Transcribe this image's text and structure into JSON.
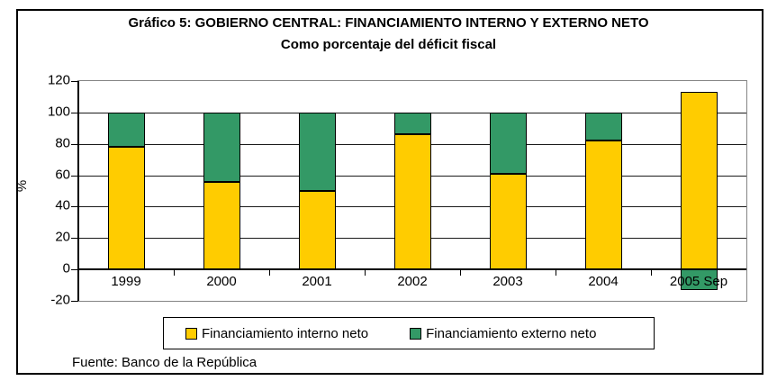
{
  "figure": {
    "title": "Gráfico 5:  GOBIERNO CENTRAL: FINANCIAMIENTO INTERNO Y EXTERNO NETO",
    "subtitle": "Como porcentaje del déficit fiscal",
    "source": "Fuente: Banco de la República"
  },
  "chart_data": {
    "type": "bar",
    "stacked": true,
    "title": "Gráfico 5:  GOBIERNO CENTRAL: FINANCIAMIENTO INTERNO Y EXTERNO NETO",
    "subtitle": "Como porcentaje del déficit fiscal",
    "categories": [
      "1999",
      "2000",
      "2001",
      "2002",
      "2003",
      "2004",
      "2005 Sep"
    ],
    "series": [
      {
        "name": "Financiamiento interno neto",
        "color": "#FFCC00",
        "values": [
          78,
          56,
          50,
          86,
          61,
          82,
          113
        ]
      },
      {
        "name": "Financiamiento externo neto",
        "color": "#339966",
        "values": [
          22,
          44,
          50,
          14,
          39,
          18,
          -13
        ]
      }
    ],
    "xlabel": "",
    "ylabel": "%",
    "ylim": [
      -20,
      120
    ],
    "yticks": [
      120,
      100,
      80,
      60,
      40,
      20,
      0,
      -20
    ],
    "grid": true,
    "legend_position": "bottom",
    "source": "Fuente: Banco de la República"
  }
}
